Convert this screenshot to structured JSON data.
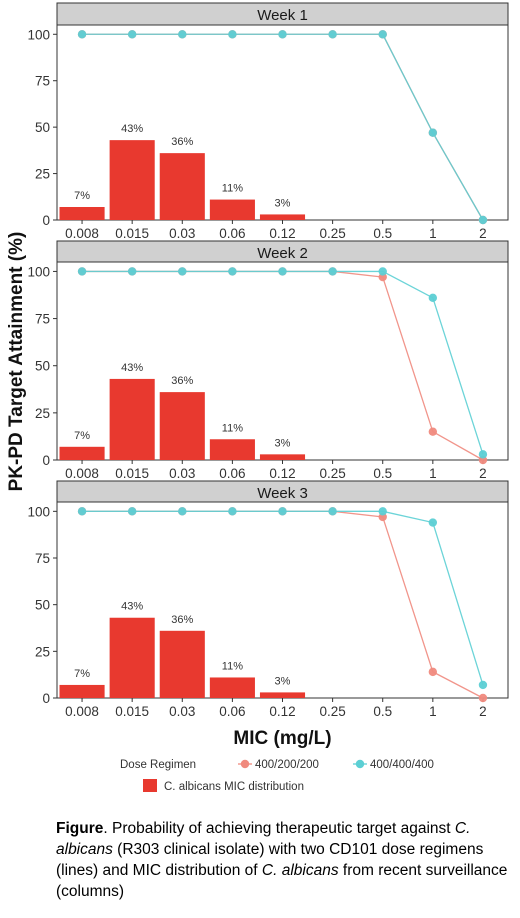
{
  "chart_data": {
    "type": "bar",
    "ylabel": "PK-PD Target Attainment (%)",
    "xlabel": "MIC (mg/L)",
    "categories": [
      "0.008",
      "0.015",
      "0.03",
      "0.06",
      "0.12",
      "0.25",
      "0.5",
      "1",
      "2"
    ],
    "ylim": [
      0,
      105
    ],
    "yticks": [
      0,
      25,
      50,
      75,
      100
    ],
    "legend": {
      "title": "Dose Regimen",
      "line_items": [
        {
          "name": "400/200/200",
          "color": "#f08a7e"
        },
        {
          "name": "400/400/400",
          "color": "#5ccfd4"
        }
      ],
      "bar_item": {
        "name": "C. albicans MIC distribution",
        "color": "#e8392f"
      }
    },
    "bar_series": {
      "name": "C. albicans MIC distribution",
      "values": [
        7,
        43,
        36,
        11,
        3
      ],
      "labels": [
        "7%",
        "43%",
        "36%",
        "11%",
        "3%"
      ],
      "color": "#e8392f"
    },
    "panels": [
      {
        "title": "Week 1",
        "series": [
          {
            "name": "400/200/200",
            "values": [
              100,
              100,
              100,
              100,
              100,
              100,
              100,
              47,
              0
            ]
          },
          {
            "name": "400/400/400",
            "values": [
              100,
              100,
              100,
              100,
              100,
              100,
              100,
              47,
              0
            ]
          }
        ]
      },
      {
        "title": "Week 2",
        "series": [
          {
            "name": "400/200/200",
            "values": [
              100,
              100,
              100,
              100,
              100,
              100,
              97,
              15,
              0
            ]
          },
          {
            "name": "400/400/400",
            "values": [
              100,
              100,
              100,
              100,
              100,
              100,
              100,
              86,
              3
            ]
          }
        ]
      },
      {
        "title": "Week 3",
        "series": [
          {
            "name": "400/200/200",
            "values": [
              100,
              100,
              100,
              100,
              100,
              100,
              97,
              14,
              0
            ]
          },
          {
            "name": "400/400/400",
            "values": [
              100,
              100,
              100,
              100,
              100,
              100,
              100,
              94,
              7
            ]
          }
        ]
      }
    ]
  },
  "caption": {
    "label": "Figure",
    "segments": [
      {
        "text": ". Probability  of achieving therapeutic target against ",
        "italic": false
      },
      {
        "text": "C. albicans",
        "italic": true
      },
      {
        "text": " (R303 clinical isolate) with two CD101 dose regimens (lines) and MIC distribution of ",
        "italic": false
      },
      {
        "text": "C. albicans",
        "italic": true
      },
      {
        "text": " from recent surveillance (columns)",
        "italic": false
      }
    ]
  }
}
